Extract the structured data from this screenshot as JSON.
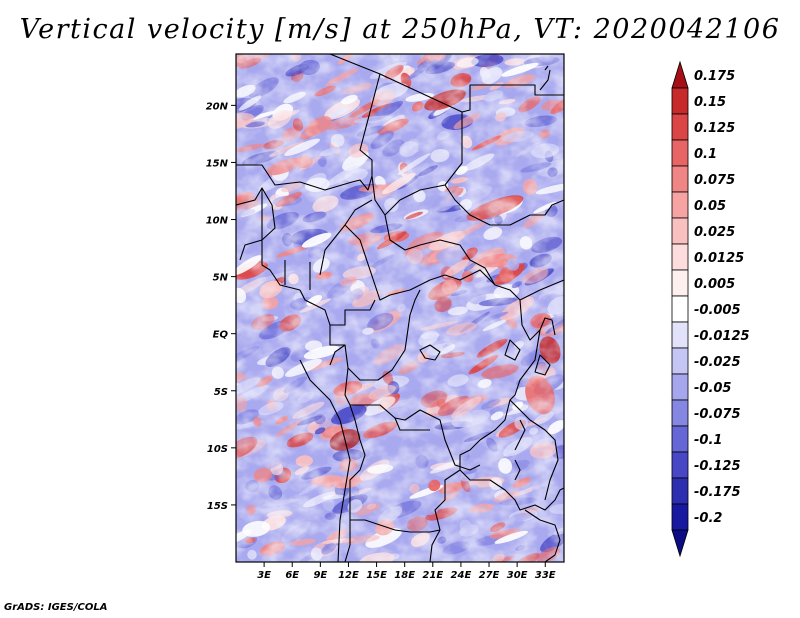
{
  "title": "Vertical velocity [m/s] at 250hPa, VT: 2020042106",
  "footer": "GrADS: IGES/COLA",
  "map": {
    "lat_labels": [
      "20N",
      "15N",
      "10N",
      "5N",
      "EQ",
      "5S",
      "10S",
      "15S"
    ],
    "lat_values": [
      20,
      15,
      10,
      5,
      0,
      -5,
      -10,
      -15
    ],
    "lon_labels": [
      "3E",
      "6E",
      "9E",
      "12E",
      "15E",
      "18E",
      "21E",
      "24E",
      "27E",
      "30E",
      "33E"
    ],
    "lon_values": [
      3,
      6,
      9,
      12,
      15,
      18,
      21,
      24,
      27,
      30,
      33
    ],
    "lon_range": [
      0,
      35
    ],
    "lat_range": [
      -20,
      24.5
    ]
  },
  "colorbar": {
    "levels": [
      "0.175",
      "0.15",
      "0.125",
      "0.1",
      "0.075",
      "0.05",
      "0.025",
      "0.0125",
      "0.005",
      "-0.005",
      "-0.0125",
      "-0.025",
      "-0.05",
      "-0.075",
      "-0.1",
      "-0.125",
      "-0.175",
      "-0.2"
    ],
    "colors": [
      "#a50f15",
      "#c62a2a",
      "#dc4545",
      "#e86565",
      "#f08585",
      "#f5a3a3",
      "#f9c0c0",
      "#fcdcdc",
      "#fff0f0",
      "#ffffff",
      "#e2e2fb",
      "#c6c6f4",
      "#a6a6ed",
      "#8686e3",
      "#6666d6",
      "#4848c6",
      "#2e2eb1",
      "#1818a0",
      "#0c0c85"
    ]
  }
}
